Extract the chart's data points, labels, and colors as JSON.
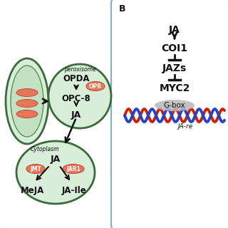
{
  "bg_color": "#eef4fb",
  "panel_bg": "#ffffff",
  "cell_fill_light": "#d8eed8",
  "cell_fill_mid": "#c2e0c2",
  "cell_edge_dark": "#3a6b3a",
  "cell_edge_mid": "#5a8f5a",
  "enzyme_fill": "#e8745a",
  "enzyme_edge": "#c05030",
  "enzyme_text": "#ffffff",
  "arrow_color": "#111111",
  "text_color": "#111111",
  "dna_red": "#cc2200",
  "dna_blue": "#2244cc",
  "gbox_fill": "#b8b8b8",
  "panel_border": "#7ab0d0",
  "label_B": "B",
  "peroxisome_label": "peroxisome",
  "cytoplasm_label": "Cytoplasm",
  "enzyme_OPR": "OPR",
  "enzyme_JMT": "JMT",
  "enzyme_JAR1": "JAR1",
  "gbox_label": "G-box",
  "ja_re_label": "JA-re"
}
